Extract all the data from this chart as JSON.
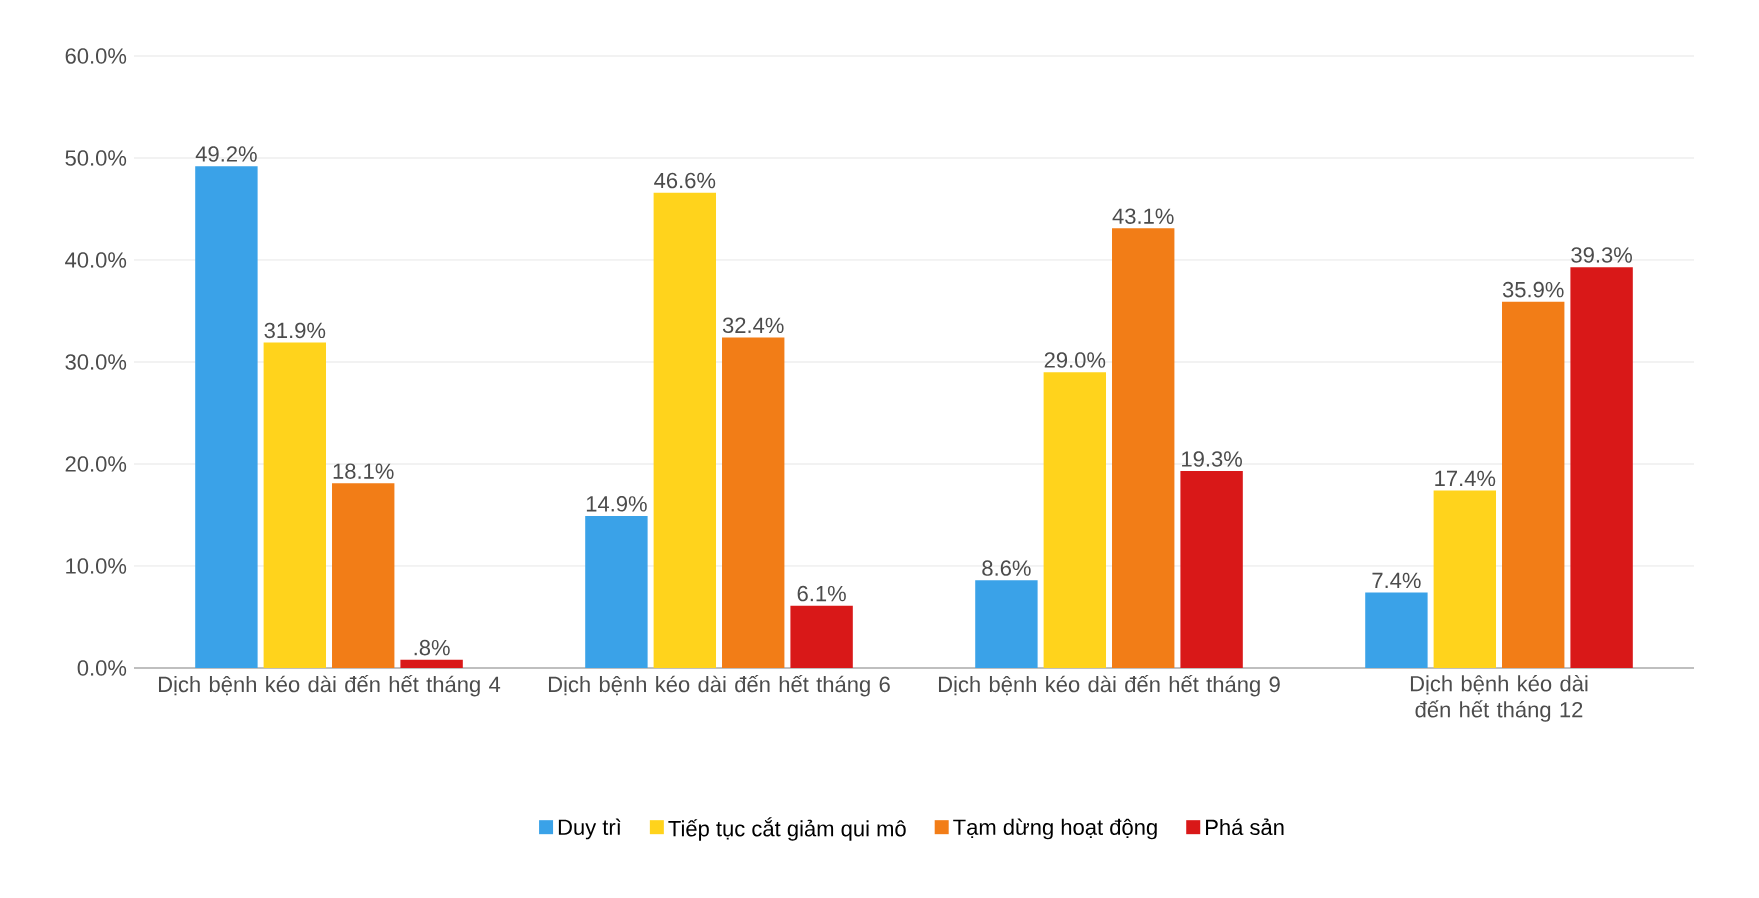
{
  "chart_data": {
    "type": "bar",
    "categories": [
      "Dịch bệnh kéo dài đến hết tháng 4",
      "Dịch bệnh kéo dài đến hết tháng 6",
      "Dịch bệnh kéo dài đến hết tháng 9",
      "Dịch bệnh kéo dài đến hết tháng 12"
    ],
    "series": [
      {
        "name": "Duy trì",
        "color": "#3aa2e8",
        "values": [
          49.2,
          14.9,
          8.6,
          7.4
        ],
        "value_labels": [
          "49.2%",
          "14.9%",
          "8.6%",
          "7.4%"
        ]
      },
      {
        "name": "Tiếp tục cắt giảm qui mô",
        "color": "#ffd31c",
        "values": [
          31.9,
          46.6,
          29.0,
          17.4
        ],
        "value_labels": [
          "31.9%",
          "46.6%",
          "29.0%",
          "17.4%"
        ]
      },
      {
        "name": "Tạm dừng hoạt động",
        "color": "#f27d17",
        "values": [
          18.1,
          32.4,
          43.1,
          35.9
        ],
        "value_labels": [
          "18.1%",
          "32.4%",
          "43.1%",
          "35.9%"
        ]
      },
      {
        "name": "Phá sản",
        "color": "#d91818",
        "values": [
          0.8,
          6.1,
          19.3,
          39.3
        ],
        "value_labels": [
          ".8%",
          "6.1%",
          "19.3%",
          "39.3%"
        ]
      }
    ],
    "ylim": [
      0,
      60
    ],
    "yticks": [
      {
        "value": 0,
        "label": "0.0%"
      },
      {
        "value": 10,
        "label": "10.0%"
      },
      {
        "value": 20,
        "label": "20.0%"
      },
      {
        "value": 30,
        "label": "30.0%"
      },
      {
        "value": 40,
        "label": "40.0%"
      },
      {
        "value": 50,
        "label": "50.0%"
      },
      {
        "value": 60,
        "label": "60.0%"
      }
    ],
    "grid": "y",
    "legend": "bottom"
  }
}
